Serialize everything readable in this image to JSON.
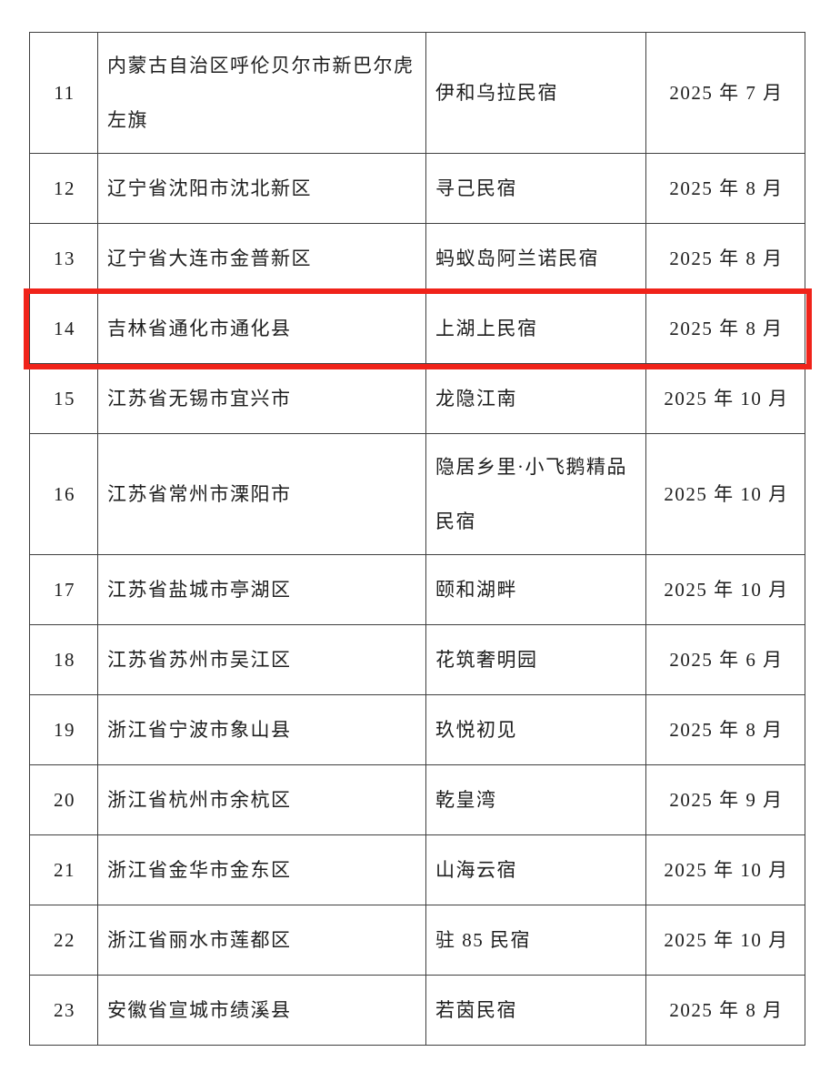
{
  "page": {
    "background_color": "#ffffff"
  },
  "table": {
    "border_color": "#3f3f3f",
    "text_color": "#1e1e1e",
    "highlight_color": "#f0231a",
    "rows": [
      {
        "no": "11",
        "region": "内蒙古自治区呼伦贝尔市新巴尔虎左旗",
        "name": "伊和乌拉民宿",
        "date": "2025 年 7 月",
        "highlighted": false
      },
      {
        "no": "12",
        "region": "辽宁省沈阳市沈北新区",
        "name": "寻己民宿",
        "date": "2025 年 8 月",
        "highlighted": false
      },
      {
        "no": "13",
        "region": "辽宁省大连市金普新区",
        "name": "蚂蚁岛阿兰诺民宿",
        "date": "2025 年 8 月",
        "highlighted": false
      },
      {
        "no": "14",
        "region": "吉林省通化市通化县",
        "name": "上湖上民宿",
        "date": "2025 年 8 月",
        "highlighted": true
      },
      {
        "no": "15",
        "region": "江苏省无锡市宜兴市",
        "name": "龙隐江南",
        "date": "2025 年 10 月",
        "highlighted": false
      },
      {
        "no": "16",
        "region": "江苏省常州市溧阳市",
        "name": "隐居乡里·小飞鹅精品民宿",
        "date": "2025 年 10 月",
        "highlighted": false
      },
      {
        "no": "17",
        "region": "江苏省盐城市亭湖区",
        "name": "颐和湖畔",
        "date": "2025 年 10 月",
        "highlighted": false
      },
      {
        "no": "18",
        "region": "江苏省苏州市吴江区",
        "name": "花筑奢明园",
        "date": "2025 年 6 月",
        "highlighted": false
      },
      {
        "no": "19",
        "region": "浙江省宁波市象山县",
        "name": "玖悦初见",
        "date": "2025 年 8 月",
        "highlighted": false
      },
      {
        "no": "20",
        "region": "浙江省杭州市余杭区",
        "name": "乾皇湾",
        "date": "2025 年 9 月",
        "highlighted": false
      },
      {
        "no": "21",
        "region": "浙江省金华市金东区",
        "name": "山海云宿",
        "date": "2025 年 10 月",
        "highlighted": false
      },
      {
        "no": "22",
        "region": "浙江省丽水市莲都区",
        "name": "驻 85 民宿",
        "date": "2025 年 10 月",
        "highlighted": false
      },
      {
        "no": "23",
        "region": "安徽省宣城市绩溪县",
        "name": "若茵民宿",
        "date": "2025 年 8 月",
        "highlighted": false
      }
    ]
  }
}
